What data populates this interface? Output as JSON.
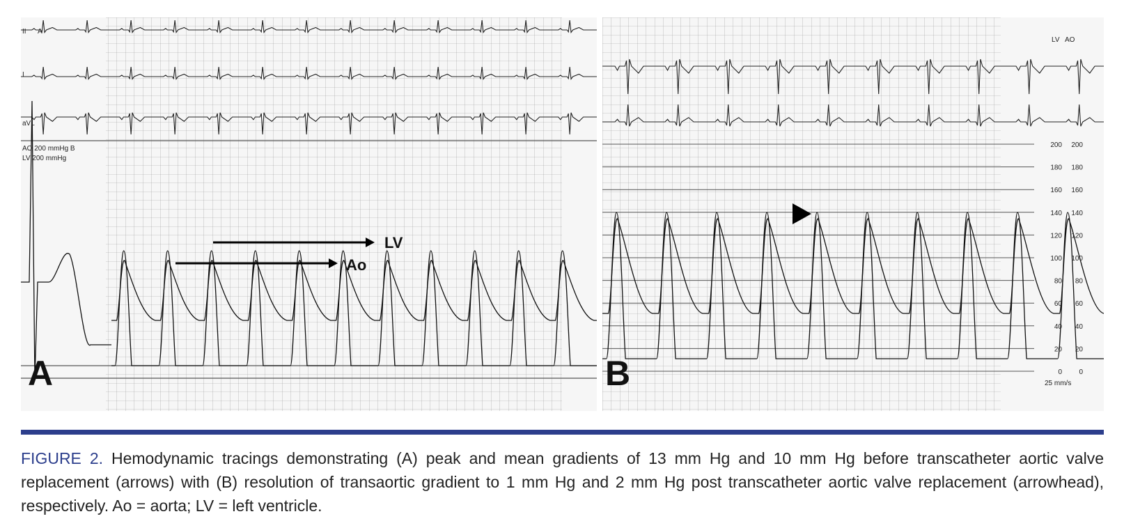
{
  "figure": {
    "panel_a": {
      "letter": "A",
      "lead_labels": [
        "II",
        "A",
        "I",
        "aVL"
      ],
      "scale_labels": [
        "AO  200 mmHg   B",
        "LV  200 mmHg"
      ],
      "arrow_labels": {
        "lv": "LV",
        "ao": "Ao"
      }
    },
    "panel_b": {
      "letter": "B",
      "top_labels": [
        "LV",
        "AO"
      ],
      "scale_ticks": [
        "200",
        "180",
        "160",
        "140",
        "120",
        "100",
        "80",
        "60",
        "40",
        "20",
        "0"
      ],
      "speed_label": "25 mm/s"
    }
  },
  "caption": {
    "label": "FIGURE 2.",
    "text": "Hemodynamic tracings demonstrating (A) peak and mean gradients of 13 mm Hg and 10 mm Hg before transcatheter aortic valve replacement (arrows) with (B) resolution of transaortic gradient to 1 mm Hg and 2 mm Hg post transcatheter aortic valve replacement (arrowhead), respectively. Ao = aorta; LV = left ventricle."
  }
}
